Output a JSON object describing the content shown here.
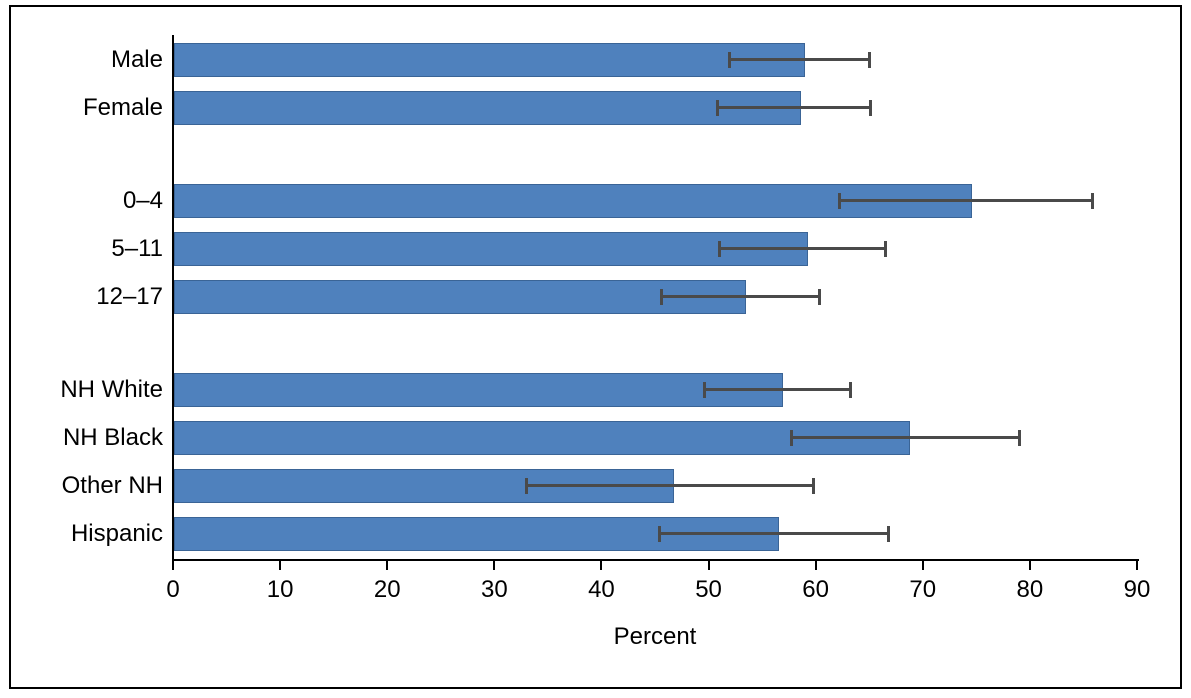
{
  "chart_data": {
    "type": "bar",
    "orientation": "horizontal",
    "title": "",
    "xlabel": "Percent",
    "ylabel": "",
    "xlim": [
      0,
      90
    ],
    "xticks": [
      0,
      10,
      20,
      30,
      40,
      50,
      60,
      70,
      80,
      90
    ],
    "grid": false,
    "legend": false,
    "error_bars": true,
    "groups": [
      [
        {
          "label": "Male",
          "value": 58.9,
          "ci_low": 51.9,
          "ci_high": 65.1
        },
        {
          "label": "Female",
          "value": 58.5,
          "ci_low": 50.8,
          "ci_high": 65.2
        }
      ],
      [
        {
          "label": "0–4",
          "value": 74.5,
          "ci_low": 62.2,
          "ci_high": 85.9
        },
        {
          "label": "5–11",
          "value": 59.2,
          "ci_low": 51.0,
          "ci_high": 66.6
        },
        {
          "label": "12–17",
          "value": 53.4,
          "ci_low": 45.6,
          "ci_high": 60.4
        }
      ],
      [
        {
          "label": "NH White",
          "value": 56.9,
          "ci_low": 49.6,
          "ci_high": 63.3
        },
        {
          "label": "NH Black",
          "value": 68.7,
          "ci_low": 57.7,
          "ci_high": 79.1
        },
        {
          "label": "Other NH",
          "value": 46.7,
          "ci_low": 33.0,
          "ci_high": 59.8
        },
        {
          "label": "Hispanic",
          "value": 56.5,
          "ci_low": 45.4,
          "ci_high": 66.8
        }
      ]
    ]
  },
  "colors": {
    "bar_fill": "#4F81BD",
    "bar_border": "#3A6496",
    "error_bar": "#4A4A4A",
    "axis": "#000000",
    "text": "#000000",
    "frame": "#000000",
    "background": "#FFFFFF"
  }
}
